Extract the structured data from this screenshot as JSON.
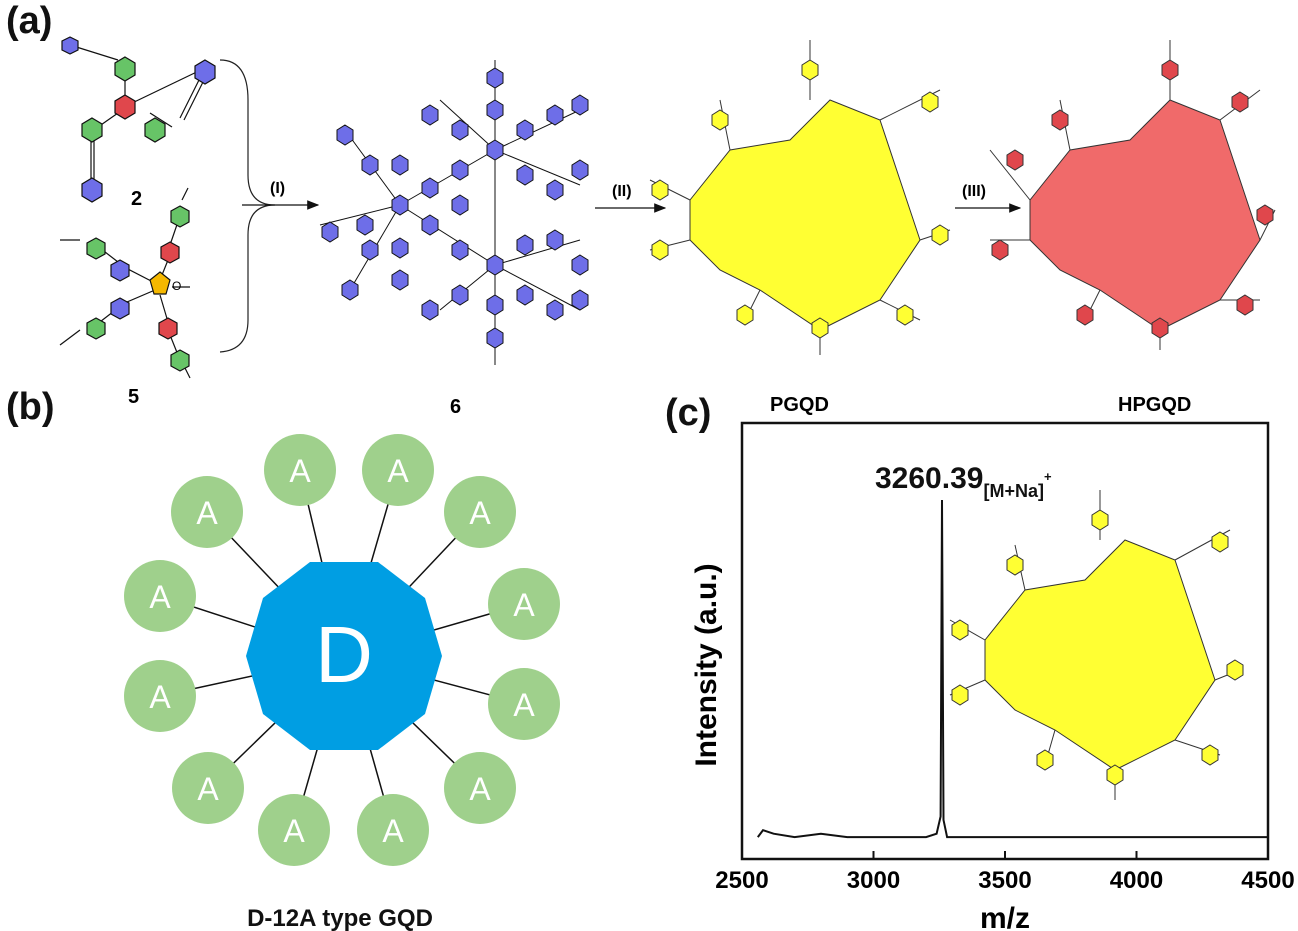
{
  "panel_a": {
    "label": "(a)",
    "compound_2": "2",
    "compound_5": "5",
    "compound_6": "6",
    "step_1": "(I)",
    "step_2": "(II)",
    "step_3": "(III)",
    "product_1": "PGQD",
    "product_2": "HPGQD",
    "colors": {
      "blue": "#6e6ee8",
      "green": "#67c467",
      "red": "#e0474c",
      "yellow": "#ffff33",
      "ring_red": "#f06a6a"
    }
  },
  "panel_b": {
    "label": "(b)",
    "donor": "D",
    "acceptor": "A",
    "caption": "D-12A type GQD",
    "colors": {
      "donor": "#009ee3",
      "acceptor": "#9fd08c"
    }
  },
  "panel_c": {
    "label": "(c)",
    "peak_value": "3260.39",
    "peak_ion": "[M+Na]",
    "peak_charge": "+"
  },
  "chart_data": {
    "type": "line",
    "title": "",
    "xlabel": "m/z",
    "ylabel": "Intensity (a.u.)",
    "xlim": [
      2500,
      4500
    ],
    "ylim": [
      0,
      1
    ],
    "xticks": [
      "2500",
      "3000",
      "3500",
      "4000",
      "4500"
    ],
    "yticks": [],
    "grid": false,
    "legend": "none",
    "series": [
      {
        "x": [
          2560,
          2580,
          2620,
          2700,
          2800,
          2900,
          3000,
          3100,
          3200,
          3240,
          3255,
          3260.39,
          3266,
          3280,
          3320,
          3400,
          3500,
          3600,
          3700,
          3800,
          3900,
          4000,
          4100,
          4200,
          4300,
          4400,
          4500
        ],
        "y": [
          0.02,
          0.04,
          0.03,
          0.02,
          0.03,
          0.02,
          0.02,
          0.02,
          0.02,
          0.03,
          0.08,
          1.0,
          0.07,
          0.02,
          0.02,
          0.02,
          0.02,
          0.02,
          0.02,
          0.02,
          0.02,
          0.02,
          0.02,
          0.02,
          0.02,
          0.02,
          0.02
        ]
      }
    ],
    "annotations": [
      "3260.39[M+Na]+"
    ]
  }
}
